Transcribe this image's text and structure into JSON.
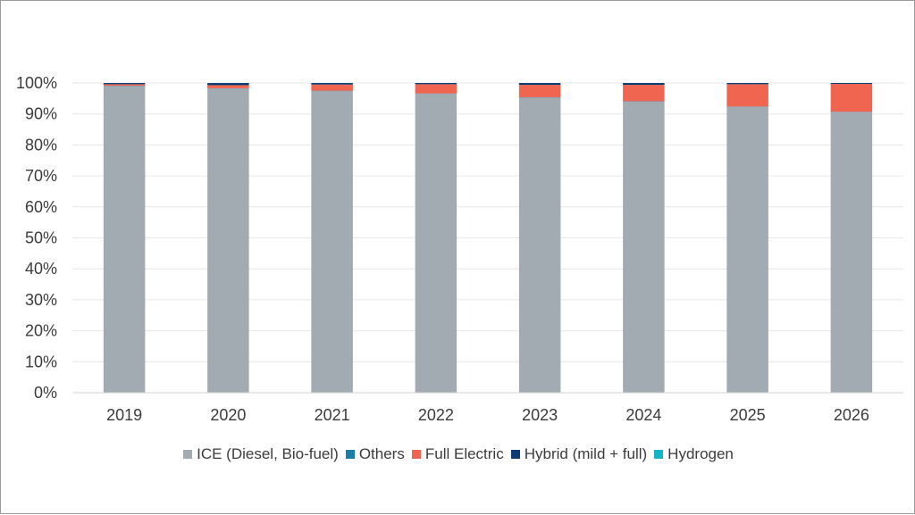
{
  "chart_data": {
    "type": "bar",
    "stacked": true,
    "percent_axis": true,
    "categories": [
      "2019",
      "2020",
      "2021",
      "2022",
      "2023",
      "2024",
      "2025",
      "2026"
    ],
    "series": [
      {
        "name": "ICE (Diesel, Bio-fuel)",
        "color": "#a2abb2",
        "values": [
          99.0,
          98.2,
          97.4,
          96.5,
          95.3,
          94.0,
          92.3,
          90.6
        ]
      },
      {
        "name": "Others",
        "color": "#1a7fa8",
        "values": [
          0.1,
          0.1,
          0.1,
          0.1,
          0.1,
          0.1,
          0.1,
          0.1
        ]
      },
      {
        "name": "Full Electric",
        "color": "#f0654f",
        "values": [
          0.5,
          1.0,
          2.0,
          3.0,
          4.0,
          5.3,
          7.2,
          9.0
        ]
      },
      {
        "name": "Hybrid (mild + full)",
        "color": "#0d3b73",
        "values": [
          0.4,
          0.7,
          0.5,
          0.4,
          0.6,
          0.6,
          0.4,
          0.3
        ]
      },
      {
        "name": "Hydrogen",
        "color": "#17b3c7",
        "values": [
          0.0,
          0.0,
          0.0,
          0.0,
          0.0,
          0.0,
          0.0,
          0.0
        ]
      }
    ],
    "ylim": [
      0,
      100
    ],
    "yticks": [
      "0%",
      "10%",
      "20%",
      "30%",
      "40%",
      "50%",
      "60%",
      "70%",
      "80%",
      "90%",
      "100%"
    ],
    "grid": true,
    "legend_position": "bottom"
  }
}
